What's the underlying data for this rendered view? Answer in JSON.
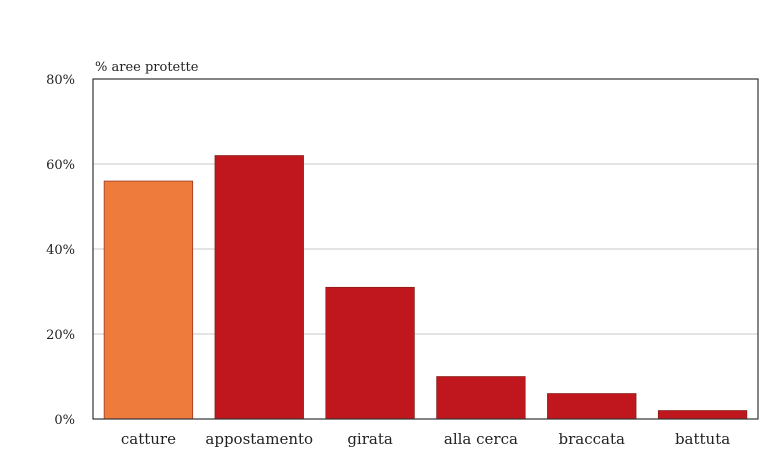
{
  "chart_data": {
    "type": "bar",
    "title": "",
    "xlabel": "",
    "ylabel": "% aree protette",
    "categories": [
      "catture",
      "appostamento",
      "girata",
      "alla cerca",
      "braccata",
      "battuta"
    ],
    "values": [
      56,
      62,
      31,
      10,
      6,
      2
    ],
    "ylim": [
      0,
      80
    ],
    "yticks": [
      0,
      20,
      40,
      60,
      80
    ],
    "ytick_labels": [
      "0%",
      "20%",
      "40%",
      "60%",
      "80%"
    ],
    "grid": true,
    "legend": "none",
    "colors": [
      "#ee7a3c",
      "#c0161e",
      "#c0161e",
      "#c0161e",
      "#c0161e",
      "#c0161e"
    ],
    "gridline_color": "#c8c8c8",
    "frame_color": "#333333"
  }
}
